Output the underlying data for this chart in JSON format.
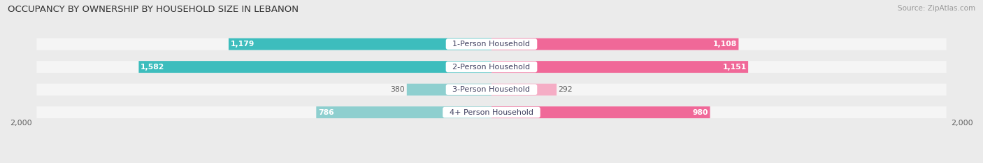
{
  "title": "OCCUPANCY BY OWNERSHIP BY HOUSEHOLD SIZE IN LEBANON",
  "source": "Source: ZipAtlas.com",
  "categories": [
    "1-Person Household",
    "2-Person Household",
    "3-Person Household",
    "4+ Person Household"
  ],
  "owner_values": [
    1179,
    1582,
    380,
    786
  ],
  "renter_values": [
    1108,
    1151,
    292,
    980
  ],
  "max_val": 2000,
  "owner_color_strong": "#3DBDBD",
  "owner_color_light": "#8ECFCF",
  "renter_color_strong": "#F06898",
  "renter_color_light": "#F5ADC5",
  "bg_color": "#EBEBEB",
  "bar_bg_color": "#E0E0E0",
  "bar_row_bg": "#F5F5F5",
  "white": "#FFFFFF",
  "text_dark": "#404060",
  "text_gray": "#606060",
  "axis_label": "2,000",
  "title_fontsize": 9.5,
  "source_fontsize": 7.5,
  "bar_height": 0.52,
  "figsize": [
    14.06,
    2.33
  ],
  "owner_colors": [
    "#3DBDBD",
    "#3DBDBD",
    "#8ECFCF",
    "#8ECFCF"
  ],
  "renter_colors": [
    "#F06898",
    "#F06898",
    "#F5ADC5",
    "#F06898"
  ]
}
